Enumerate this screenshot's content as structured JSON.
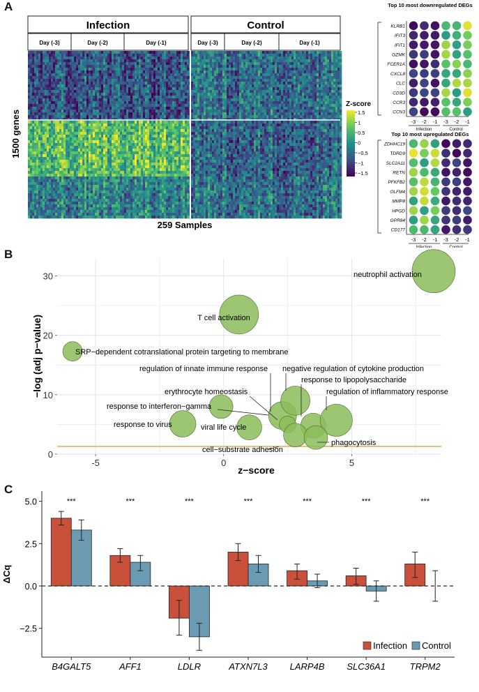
{
  "panels": {
    "a": {
      "letter": "A",
      "group_labels": [
        "Infection",
        "Control"
      ],
      "day_labels": [
        "Day (-3)",
        "Day (-2)",
        "Day (-1)"
      ],
      "y_title": "1500 genes",
      "x_title": "259 Samples",
      "legend": {
        "title": "Z-score",
        "ticks": [
          "1.5",
          "1",
          "0.5",
          "0",
          "−0.5",
          "−1",
          "−1.5"
        ]
      },
      "down_degs": {
        "title": "Top 10 most downregulated DEGs",
        "genes": [
          "KLRB1",
          "IFIT3",
          "IFIT1",
          "GZMK",
          "FCER1A",
          "CXCL8",
          "CLC",
          "CD3D",
          "CCR3",
          "CCN3"
        ]
      },
      "up_degs": {
        "title": "Top 10 most upregulated DEGs",
        "genes": [
          "ZDHHC19",
          "TDRD9",
          "SLC2A11",
          "RETN",
          "PFKFB2",
          "OLFM4",
          "MMP8",
          "HPGD",
          "GPR84",
          "CD177"
        ]
      },
      "dot_x_ticks": [
        "-3",
        "-2",
        "-1",
        "-3",
        "-2",
        "-1"
      ],
      "dot_groups": [
        "Infection",
        "Control"
      ]
    },
    "b": {
      "letter": "B"
    },
    "c": {
      "letter": "C"
    }
  },
  "colors": {
    "infection": "#c9503a",
    "control": "#6a9bb3",
    "bubble": "#8cbc5a",
    "threshold": "#e5a23a",
    "viridis": [
      "#440154",
      "#3b528b",
      "#21908d",
      "#5dc863",
      "#fde725"
    ]
  },
  "chart_data": [
    {
      "id": "bubble",
      "type": "scatter",
      "xlabel": "z−score",
      "ylabel": "−log (adj p−value)",
      "xlim": [
        -6.5,
        8.5
      ],
      "ylim": [
        0,
        33
      ],
      "x_ticks": [
        -5,
        0,
        5
      ],
      "y_ticks": [
        0,
        10,
        20,
        30
      ],
      "threshold": 1.3,
      "points": [
        {
          "label": "neutrophil activation",
          "x": 8.2,
          "y": 30.8,
          "size": 31
        },
        {
          "label": "T cell activation",
          "x": 0.6,
          "y": 23.5,
          "size": 28
        },
        {
          "label": "SRP−dependent cotranslational protein targeting to membrane",
          "x": -5.9,
          "y": 17.3,
          "size": 14
        },
        {
          "label": "regulation of innate immune response",
          "x": 2.3,
          "y": 6.5,
          "size": 20
        },
        {
          "label": "negative regulation of cytokine production",
          "x": 2.8,
          "y": 9.0,
          "size": 21
        },
        {
          "label": "response to lipopolysaccharide",
          "x": 3.5,
          "y": 4.8,
          "size": 18
        },
        {
          "label": "regulation of inflammatory response",
          "x": 4.4,
          "y": 5.7,
          "size": 23
        },
        {
          "label": "erythrocyte homeostasis",
          "x": 2.5,
          "y": 5.0,
          "size": 12
        },
        {
          "label": "response to interferon−gamma",
          "x": -0.1,
          "y": 8.0,
          "size": 17
        },
        {
          "label": "response to virus",
          "x": -1.6,
          "y": 5.1,
          "size": 19
        },
        {
          "label": "viral life cycle",
          "x": 1.0,
          "y": 4.5,
          "size": 18
        },
        {
          "label": "cell−substrate adhesion",
          "x": 2.8,
          "y": 3.2,
          "size": 17
        },
        {
          "label": "phagocytosis",
          "x": 3.6,
          "y": 2.8,
          "size": 17
        }
      ]
    },
    {
      "id": "qpcr",
      "type": "bar",
      "ylabel": "ΔCq",
      "ylim": [
        -4.2,
        5.6
      ],
      "y_ticks": [
        -2.5,
        0,
        2.5,
        5
      ],
      "y_tick_labels": [
        "−2.5",
        "0.0",
        "2.5",
        "5.0"
      ],
      "categories": [
        "B4GALT5",
        "AFF1",
        "LDLR",
        "ATXN7L3",
        "LARP4B",
        "SLC36A1",
        "TRPM2"
      ],
      "significance": [
        "***",
        "***",
        "***",
        "***",
        "***",
        "***",
        "***"
      ],
      "series": [
        {
          "name": "Infection",
          "values": [
            4.0,
            1.8,
            -1.9,
            2.0,
            0.9,
            0.6,
            1.3
          ],
          "err": [
            [
              3.6,
              4.4
            ],
            [
              1.4,
              2.2
            ],
            [
              -2.9,
              -0.85
            ],
            [
              1.5,
              2.5
            ],
            [
              0.4,
              1.3
            ],
            [
              0.1,
              1.05
            ],
            [
              0.5,
              2.0
            ]
          ]
        },
        {
          "name": "Control",
          "values": [
            3.3,
            1.4,
            -3.0,
            1.3,
            0.3,
            -0.3,
            0.0
          ],
          "err": [
            [
              2.7,
              3.9
            ],
            [
              0.9,
              1.8
            ],
            [
              -3.8,
              -2.2
            ],
            [
              0.8,
              1.8
            ],
            [
              -0.1,
              0.7
            ],
            [
              -0.9,
              0.3
            ],
            [
              -0.9,
              0.9
            ]
          ]
        }
      ]
    }
  ]
}
